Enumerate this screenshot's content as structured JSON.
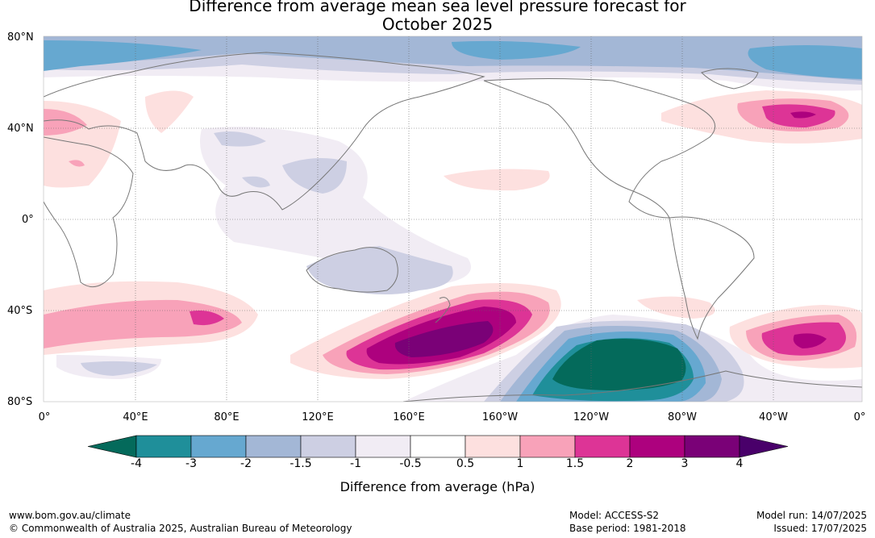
{
  "title_line1": "Difference from average mean sea level pressure forecast for",
  "title_line2": "October 2025",
  "lat_labels": [
    "80°N",
    "40°N",
    "0°",
    "40°S",
    "80°S"
  ],
  "lon_labels": [
    "0°",
    "40°E",
    "80°E",
    "120°E",
    "160°E",
    "160°W",
    "120°W",
    "80°W",
    "40°W",
    "0°"
  ],
  "colorbar": {
    "ticks": [
      "-4",
      "-3",
      "-2",
      "-1.5",
      "-1",
      "-0.5",
      "0.5",
      "1",
      "1.5",
      "2",
      "3",
      "4"
    ],
    "colors": [
      "#046a5b",
      "#1f8f9a",
      "#66a8d0",
      "#a3b7d6",
      "#cdcfe3",
      "#f1ecf4",
      "#ffffff",
      "#fde0df",
      "#f8a2b9",
      "#dd3496",
      "#ad017e",
      "#7a0177",
      "#49006a"
    ],
    "label": "Difference from average (hPa)"
  },
  "footer": {
    "website": "www.bom.gov.au/climate",
    "copyright": "© Commonwealth of Australia 2025, Australian Bureau of Meteorology",
    "model": "Model: ACCESS-S2",
    "base_period": "Base period: 1981-2018",
    "model_run": "Model run: 14/07/2025",
    "issued": "Issued: 17/07/2025"
  }
}
